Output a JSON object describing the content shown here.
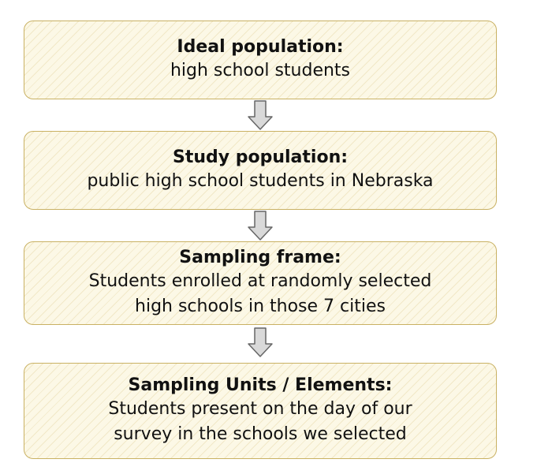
{
  "diagram": {
    "boxes": [
      {
        "title": "Ideal population:",
        "lines": [
          "high school students"
        ]
      },
      {
        "title": "Study population:",
        "lines": [
          "public high school students in Nebraska"
        ]
      },
      {
        "title": "Sampling frame:",
        "lines": [
          "Students enrolled at randomly selected",
          "high schools in those 7 cities"
        ]
      },
      {
        "title": "Sampling Units / Elements:",
        "lines": [
          "Students present on the day of our",
          "survey in the schools we selected"
        ]
      }
    ],
    "colors": {
      "box_fill": "#fcf8e6",
      "box_border": "#c9b163",
      "arrow_fill": "#d9d9d9",
      "arrow_stroke": "#666666"
    },
    "connector_icon": "down-arrow-icon"
  }
}
